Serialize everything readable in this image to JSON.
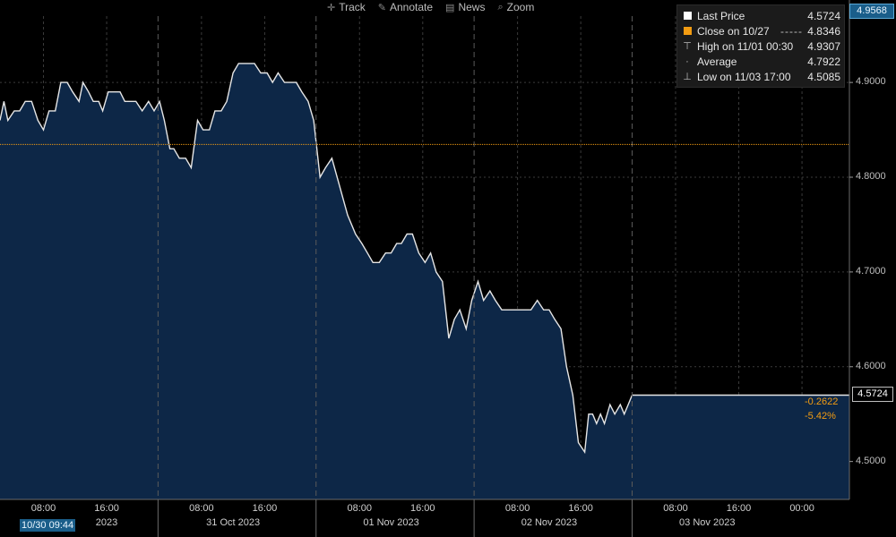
{
  "toolbar": {
    "items": [
      {
        "label": "Track",
        "icon": "crosshair-icon"
      },
      {
        "label": "Annotate",
        "icon": "pencil-icon"
      },
      {
        "label": "News",
        "icon": "news-icon"
      },
      {
        "label": "Zoom",
        "icon": "magnifier-icon"
      }
    ]
  },
  "legend": {
    "last_price": {
      "label": "Last Price",
      "value": "4.5724"
    },
    "close": {
      "label": "Close on 10/27",
      "dash": "-----",
      "value": "4.8346"
    },
    "high": {
      "label": "High on 11/01 00:30",
      "value": "4.9307"
    },
    "average": {
      "label": "Average",
      "value": "4.7922"
    },
    "low": {
      "label": "Low on 11/03 17:00",
      "value": "4.5085"
    }
  },
  "tags": {
    "top_price": "4.9568",
    "last_price": "4.5724",
    "change_abs": "-0.2622",
    "change_pct": "-5.42%",
    "start_time": "10/30 09:44"
  },
  "colors": {
    "line": "#e6e6e6",
    "fill": "#0d2747",
    "close_line": "#f39c12",
    "grid": "#3a3a3a",
    "background": "#000000"
  },
  "chart_data": {
    "type": "area",
    "y_ticks": [
      "4.9000",
      "4.8000",
      "4.7000",
      "4.6000",
      "4.5000"
    ],
    "ylim": [
      4.46,
      4.97
    ],
    "x_labels": [
      {
        "text": "08:00",
        "x": 0.55
      },
      {
        "text": "16:00",
        "x": 1.35
      },
      {
        "text": "2023",
        "x": 1.35
      },
      {
        "text": "08:00",
        "x": 2.55
      },
      {
        "text": "16:00",
        "x": 3.35
      },
      {
        "text": "31 Oct 2023",
        "x": 2.95
      },
      {
        "text": "08:00",
        "x": 4.55
      },
      {
        "text": "16:00",
        "x": 5.35
      },
      {
        "text": "01 Nov 2023",
        "x": 4.95
      },
      {
        "text": "08:00",
        "x": 6.55
      },
      {
        "text": "16:00",
        "x": 7.35
      },
      {
        "text": "02 Nov 2023",
        "x": 6.95
      },
      {
        "text": "08:00",
        "x": 8.55
      },
      {
        "text": "16:00",
        "x": 9.35
      },
      {
        "text": "00:00",
        "x": 10.15
      },
      {
        "text": "03 Nov 2023",
        "x": 8.95
      }
    ],
    "day_separators": [
      2.0,
      4.0,
      6.0,
      8.0
    ],
    "session_marks": [
      0.55,
      1.35,
      2.55,
      3.35,
      4.55,
      5.35,
      6.55,
      7.35,
      8.55,
      9.35,
      10.15
    ],
    "xlim": [
      0,
      10.75
    ],
    "close_level": 4.8346,
    "series": [
      {
        "name": "Last Price",
        "x": [
          0,
          0.05,
          0.1,
          0.18,
          0.25,
          0.32,
          0.4,
          0.48,
          0.55,
          0.62,
          0.7,
          0.77,
          0.85,
          0.92,
          1.0,
          1.05,
          1.12,
          1.18,
          1.25,
          1.3,
          1.37,
          1.45,
          1.52,
          1.58,
          1.65,
          1.72,
          1.8,
          1.88,
          1.95,
          2.02,
          2.08,
          2.15,
          2.2,
          2.27,
          2.35,
          2.42,
          2.5,
          2.57,
          2.65,
          2.72,
          2.8,
          2.87,
          2.95,
          3.02,
          3.1,
          3.15,
          3.22,
          3.3,
          3.38,
          3.45,
          3.52,
          3.6,
          3.68,
          3.75,
          3.82,
          3.9,
          3.97,
          4.05,
          4.12,
          4.2,
          4.3,
          4.4,
          4.5,
          4.58,
          4.65,
          4.72,
          4.8,
          4.88,
          4.95,
          5.02,
          5.08,
          5.15,
          5.22,
          5.3,
          5.38,
          5.45,
          5.52,
          5.6,
          5.68,
          5.75,
          5.82,
          5.9,
          5.97,
          6.05,
          6.12,
          6.2,
          6.27,
          6.35,
          6.42,
          6.5,
          6.57,
          6.65,
          6.72,
          6.8,
          6.88,
          6.95,
          7.02,
          7.1,
          7.17,
          7.25,
          7.32,
          7.4,
          7.45,
          7.5,
          7.55,
          7.6,
          7.65,
          7.72,
          7.78,
          7.85,
          7.9,
          7.95,
          8.0,
          8.5,
          8.9,
          8.95,
          9.0,
          9.08,
          9.15,
          9.2,
          9.25,
          9.3,
          9.35,
          9.4,
          9.45,
          9.5,
          9.55,
          9.6,
          9.65,
          9.72,
          9.8,
          9.87,
          9.95,
          10.0,
          10.75
        ],
        "y": [
          4.86,
          4.88,
          4.86,
          4.87,
          4.87,
          4.88,
          4.88,
          4.86,
          4.85,
          4.87,
          4.87,
          4.9,
          4.9,
          4.89,
          4.88,
          4.9,
          4.89,
          4.88,
          4.88,
          4.87,
          4.89,
          4.89,
          4.89,
          4.88,
          4.88,
          4.88,
          4.87,
          4.88,
          4.87,
          4.88,
          4.86,
          4.83,
          4.83,
          4.82,
          4.82,
          4.81,
          4.86,
          4.85,
          4.85,
          4.87,
          4.87,
          4.88,
          4.91,
          4.92,
          4.92,
          4.92,
          4.92,
          4.91,
          4.91,
          4.9,
          4.91,
          4.9,
          4.9,
          4.9,
          4.89,
          4.88,
          4.86,
          4.8,
          4.81,
          4.82,
          4.79,
          4.76,
          4.74,
          4.73,
          4.72,
          4.71,
          4.71,
          4.72,
          4.72,
          4.73,
          4.73,
          4.74,
          4.74,
          4.72,
          4.71,
          4.72,
          4.7,
          4.69,
          4.63,
          4.65,
          4.66,
          4.64,
          4.67,
          4.69,
          4.67,
          4.68,
          4.67,
          4.66,
          4.66,
          4.66,
          4.66,
          4.66,
          4.66,
          4.67,
          4.66,
          4.66,
          4.65,
          4.64,
          4.6,
          4.57,
          4.52,
          4.51,
          4.55,
          4.55,
          4.54,
          4.55,
          4.54,
          4.56,
          4.55,
          4.56,
          4.55,
          4.56,
          4.57,
          4.57,
          4.57,
          4.57,
          4.57,
          4.57,
          4.57,
          4.57,
          4.57,
          4.57,
          4.57,
          4.57,
          4.57,
          4.57,
          4.57,
          4.57,
          4.57,
          4.57,
          4.57,
          4.57,
          4.57,
          4.57,
          4.57
        ]
      }
    ]
  }
}
